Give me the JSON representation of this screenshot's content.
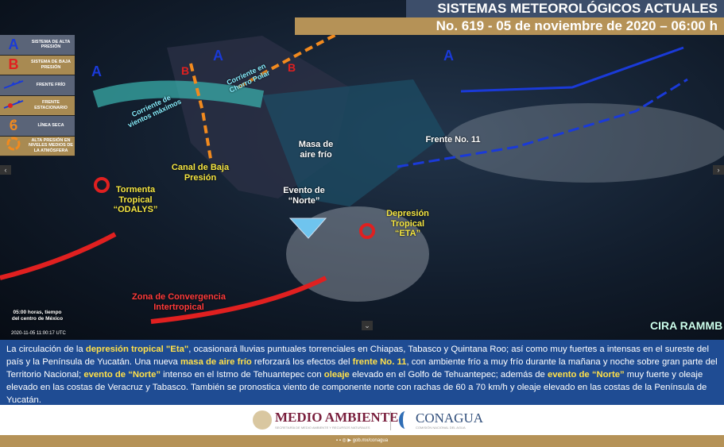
{
  "header": {
    "title": "SISTEMAS METEOROLÓGICOS ACTUALES",
    "subtitle": "No. 619 - 05 de noviembre de 2020 – 06:00 h"
  },
  "legend": [
    {
      "icon": "A",
      "label": "SISTEMA DE ALTA PRESIÓN",
      "color": "#1a3ad8"
    },
    {
      "icon": "B",
      "label": "SISTEMA DE BAJA PRESIÓN",
      "color": "#e02020"
    },
    {
      "icon": "cold-front-icon",
      "label": "FRENTE FRÍO"
    },
    {
      "icon": "stationary-front-icon",
      "label": "FRENTE ESTACIONARIO"
    },
    {
      "icon": "dry-line-icon",
      "label": "LÍNEA SECA"
    },
    {
      "icon": "upper-high-icon",
      "label": "ALTA PRESIÓN EN NIVELES MEDIOS DE LA ATMÓSFERA"
    }
  ],
  "map": {
    "polar_jet": "Corriente en Chorro Polar",
    "max_winds": "Corriente de vientos máximos",
    "baja_trough": "Canal de Baja Presión",
    "cold_air": "Masa de aire frío",
    "front": "Frente No. 11",
    "norte": "Evento de “Norte”",
    "odalys": "Tormenta Tropical “ODALYS”",
    "eta": "Depresión Tropical “ETA”",
    "itcz": "Zona de Convergencia Intertropical",
    "time_note": "05:00 horas, tiempo del centro de México",
    "timestamp": "2020-11-05 11:00:17 UTC",
    "logo": "CIRA RAMMB"
  },
  "description": {
    "p1": "La circulación de la ",
    "h1": "depresión tropical \"Eta\"",
    "p2": ", ocasionará lluvias puntuales torrenciales en Chiapas, Tabasco y Quintana Roo; así como muy fuertes a intensas en el sureste del país y la Península de Yucatán. Una nueva ",
    "h2": "masa de aire frío",
    "p3": " reforzará los efectos del ",
    "h3": "frente No. 11",
    "p4": ", con ambiente frío a muy frío durante la mañana y noche sobre gran parte del Territorio Nacional; ",
    "h4": "evento de “Norte”",
    "p5": " intenso en el Istmo de Tehuantepec con ",
    "h5": "oleaje",
    "p6": " elevado en el Golfo de Tehuantepec; además de ",
    "h6": "evento de “Norte”",
    "p7": " muy fuerte y oleaje elevado en las costas de Veracruz y Tabasco. También se pronostica viento de componente norte con rachas de 60 a 70 km/h y oleaje elevado en las costas de la Península de Yucatán."
  },
  "logos": {
    "semarnat": "MEDIO AMBIENTE",
    "semarnat_sub": "SECRETARÍA DE MEDIO AMBIENTE Y RECURSOS NATURALES",
    "conagua": "CONAGUA",
    "conagua_sub": "COMISIÓN NACIONAL DEL AGUA"
  },
  "footer": {
    "url": "gob.mx/conagua"
  }
}
